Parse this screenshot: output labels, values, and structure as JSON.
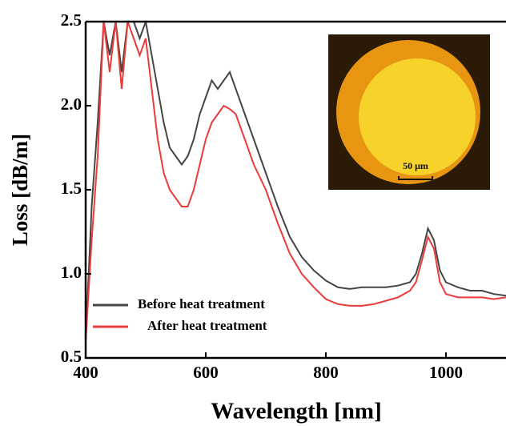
{
  "chart_data": {
    "type": "line",
    "xlabel": "Wavelength [nm]",
    "ylabel": "Loss [dB/m]",
    "inset_label": "50 μm",
    "x": [
      400,
      410,
      420,
      430,
      440,
      450,
      460,
      470,
      480,
      490,
      500,
      510,
      520,
      530,
      540,
      550,
      560,
      570,
      580,
      590,
      600,
      610,
      620,
      630,
      640,
      650,
      660,
      670,
      680,
      700,
      720,
      740,
      760,
      780,
      800,
      820,
      840,
      860,
      880,
      900,
      920,
      940,
      950,
      960,
      970,
      980,
      990,
      1000,
      1020,
      1040,
      1060,
      1080,
      1100
    ],
    "series": [
      {
        "name": "Before heat treatment",
        "color": "#454545",
        "values": [
          0.6,
          1.4,
          1.9,
          2.5,
          2.3,
          2.5,
          2.2,
          2.5,
          2.5,
          2.4,
          2.5,
          2.3,
          2.1,
          1.9,
          1.75,
          1.7,
          1.65,
          1.7,
          1.8,
          1.95,
          2.05,
          2.15,
          2.1,
          2.15,
          2.2,
          2.1,
          2.0,
          1.9,
          1.8,
          1.6,
          1.4,
          1.22,
          1.1,
          1.02,
          0.96,
          0.92,
          0.91,
          0.92,
          0.92,
          0.92,
          0.93,
          0.95,
          1.0,
          1.12,
          1.27,
          1.2,
          1.02,
          0.95,
          0.92,
          0.9,
          0.9,
          0.88,
          0.87
        ]
      },
      {
        "name": "After heat treatment",
        "color": "#ec3b3b",
        "values": [
          0.6,
          1.2,
          1.7,
          2.5,
          2.2,
          2.5,
          2.1,
          2.5,
          2.4,
          2.3,
          2.4,
          2.1,
          1.8,
          1.6,
          1.5,
          1.45,
          1.4,
          1.4,
          1.5,
          1.65,
          1.8,
          1.9,
          1.95,
          2.0,
          1.98,
          1.95,
          1.85,
          1.75,
          1.65,
          1.5,
          1.3,
          1.12,
          1.0,
          0.92,
          0.85,
          0.82,
          0.81,
          0.81,
          0.82,
          0.84,
          0.86,
          0.9,
          0.95,
          1.08,
          1.22,
          1.15,
          0.95,
          0.88,
          0.86,
          0.86,
          0.86,
          0.85,
          0.86
        ]
      }
    ],
    "xlim": [
      400,
      1100
    ],
    "ylim": [
      0.5,
      2.5
    ],
    "xticks": [
      400,
      600,
      800,
      1000
    ],
    "yticks": [
      0.5,
      {
        "value": 1,
        "label": "1.0"
      },
      1.5,
      {
        "value": 2,
        "label": "2.0"
      },
      2.5
    ],
    "legend": "lower left"
  }
}
